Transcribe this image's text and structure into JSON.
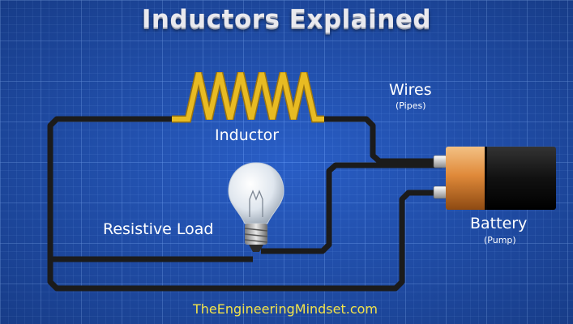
{
  "title": "Inductors Explained",
  "labels": {
    "inductor": "Inductor",
    "wires": "Wires",
    "wires_sub": "(Pipes)",
    "resistive_load": "Resistive Load",
    "battery": "Battery",
    "battery_sub": "(Pump)"
  },
  "footer": {
    "website": "TheEngineeringMindset.com"
  },
  "colors": {
    "background": "#1f50b5",
    "wire": "#1b1b1b",
    "inductor_coil": "#e0b21e",
    "battery_cap": "#e08a3a",
    "battery_body": "#111111",
    "footer_text": "#f2e24a"
  }
}
